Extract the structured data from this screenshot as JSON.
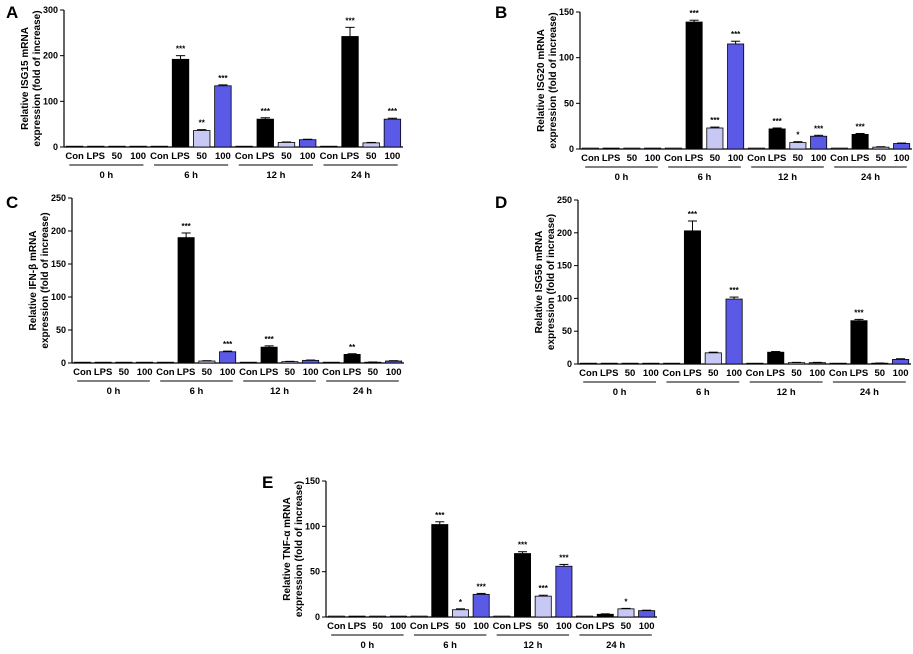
{
  "chart_data": [
    {
      "panel": "A",
      "type": "bar",
      "ylabel_line1": "Relative ISG15 mRNA",
      "ylabel_line2": "expression (fold of increase)",
      "ylim": [
        0,
        300
      ],
      "yticks": [
        0,
        100,
        200,
        300
      ],
      "categories": [
        "Con",
        "LPS",
        "50",
        "100"
      ],
      "groups": [
        "0 h",
        "6 h",
        "12 h",
        "24 h"
      ],
      "values": [
        [
          1,
          1,
          1,
          1
        ],
        [
          1,
          192,
          36,
          134
        ],
        [
          1,
          61,
          10,
          16
        ],
        [
          1,
          242,
          9,
          61
        ]
      ],
      "errors": [
        [
          0,
          0,
          0,
          0
        ],
        [
          0,
          8,
          2,
          2
        ],
        [
          0,
          3,
          1,
          1
        ],
        [
          0,
          20,
          1,
          2
        ]
      ],
      "significance": [
        [
          "",
          "",
          "",
          ""
        ],
        [
          "",
          "***",
          "**",
          "***"
        ],
        [
          "",
          "***",
          "",
          ""
        ],
        [
          "",
          "***",
          "",
          "***"
        ]
      ]
    },
    {
      "panel": "B",
      "type": "bar",
      "ylabel_line1": "Relative ISG20 mRNA",
      "ylabel_line2": "expression (fold of increase)",
      "ylim": [
        0,
        150
      ],
      "yticks": [
        0,
        50,
        100,
        150
      ],
      "categories": [
        "Con",
        "LPS",
        "50",
        "100"
      ],
      "groups": [
        "0 h",
        "6 h",
        "12 h",
        "24 h"
      ],
      "values": [
        [
          1,
          1,
          1,
          1
        ],
        [
          1,
          139,
          23,
          115
        ],
        [
          1,
          22,
          7,
          14
        ],
        [
          1,
          16,
          2,
          6
        ]
      ],
      "errors": [
        [
          0,
          0,
          0,
          0
        ],
        [
          0,
          2,
          1,
          3
        ],
        [
          0,
          1,
          1,
          1
        ],
        [
          0,
          1,
          0.5,
          0.5
        ]
      ],
      "significance": [
        [
          "",
          "",
          "",
          ""
        ],
        [
          "",
          "***",
          "***",
          "***"
        ],
        [
          "",
          "***",
          "*",
          "***"
        ],
        [
          "",
          "***",
          "",
          ""
        ]
      ]
    },
    {
      "panel": "C",
      "type": "bar",
      "ylabel_line1": "Relative IFN-β mRNA",
      "ylabel_line2": "expression (fold of increase)",
      "ylim": [
        0,
        250
      ],
      "yticks": [
        0,
        50,
        100,
        150,
        200,
        250
      ],
      "categories": [
        "Con",
        "LPS",
        "50",
        "100"
      ],
      "groups": [
        "0 h",
        "6 h",
        "12 h",
        "24 h"
      ],
      "values": [
        [
          1,
          1,
          1,
          1
        ],
        [
          1,
          190,
          3,
          17
        ],
        [
          1,
          24,
          2,
          4
        ],
        [
          1,
          13,
          1,
          3
        ]
      ],
      "errors": [
        [
          0,
          0,
          0,
          0
        ],
        [
          0,
          7,
          0.5,
          1
        ],
        [
          0,
          2,
          0.5,
          0.5
        ],
        [
          0,
          1,
          0.5,
          0.5
        ]
      ],
      "significance": [
        [
          "",
          "",
          "",
          ""
        ],
        [
          "",
          "***",
          "",
          "***"
        ],
        [
          "",
          "***",
          "",
          ""
        ],
        [
          "",
          "**",
          "",
          ""
        ]
      ]
    },
    {
      "panel": "D",
      "type": "bar",
      "ylabel_line1": "Relative ISG56 mRNA",
      "ylabel_line2": "expression (fold of increase)",
      "ylim": [
        0,
        250
      ],
      "yticks": [
        0,
        50,
        100,
        150,
        200,
        250
      ],
      "categories": [
        "Con",
        "LPS",
        "50",
        "100"
      ],
      "groups": [
        "0 h",
        "6 h",
        "12 h",
        "24 h"
      ],
      "values": [
        [
          1,
          1,
          1,
          1
        ],
        [
          1,
          203,
          17,
          99
        ],
        [
          1,
          18,
          2,
          2
        ],
        [
          1,
          66,
          1,
          7
        ]
      ],
      "errors": [
        [
          0,
          0,
          0,
          0
        ],
        [
          0,
          15,
          1,
          3
        ],
        [
          0,
          1,
          0.5,
          0.5
        ],
        [
          0,
          2,
          0.5,
          1
        ]
      ],
      "significance": [
        [
          "",
          "",
          "",
          ""
        ],
        [
          "",
          "***",
          "",
          "***"
        ],
        [
          "",
          "",
          "",
          ""
        ],
        [
          "",
          "***",
          "",
          ""
        ]
      ]
    },
    {
      "panel": "E",
      "type": "bar",
      "ylabel_line1": "Relative TNF-α mRNA",
      "ylabel_line2": "expression (fold of increase)",
      "ylim": [
        0,
        150
      ],
      "yticks": [
        0,
        50,
        100,
        150
      ],
      "categories": [
        "Con",
        "LPS",
        "50",
        "100"
      ],
      "groups": [
        "0 h",
        "6 h",
        "12 h",
        "24 h"
      ],
      "values": [
        [
          1,
          1,
          1,
          1
        ],
        [
          1,
          102,
          8,
          25
        ],
        [
          1,
          70,
          23,
          56
        ],
        [
          1,
          3,
          9,
          7
        ]
      ],
      "errors": [
        [
          0,
          0,
          0,
          0
        ],
        [
          0,
          3,
          1,
          1
        ],
        [
          0,
          2,
          1,
          2
        ],
        [
          0,
          0.5,
          0.5,
          0.5
        ]
      ],
      "significance": [
        [
          "",
          "",
          "",
          ""
        ],
        [
          "",
          "***",
          "*",
          "***"
        ],
        [
          "",
          "***",
          "***",
          "***"
        ],
        [
          "",
          "",
          "*",
          ""
        ]
      ]
    }
  ],
  "colors": {
    "con": "#ffffff",
    "lps": "#000000",
    "low_dose": "#c8c8f5",
    "high_dose": "#5a5ae6"
  }
}
